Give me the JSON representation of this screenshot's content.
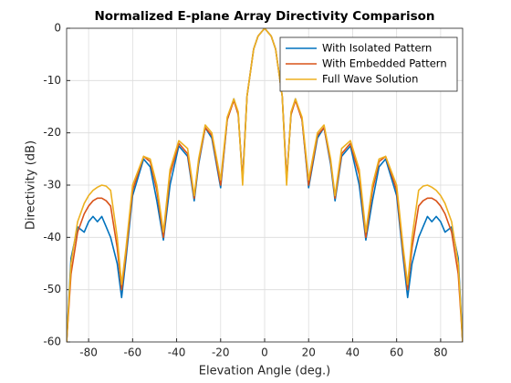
{
  "chart_data": {
    "type": "line",
    "title": "Normalized E-plane Array Directivity Comparison",
    "x_label": "Elevation Angle (deg.)",
    "y_label": "Directivity (dB)",
    "x": [
      -90,
      -88,
      -85,
      -82,
      -80,
      -78,
      -76,
      -74,
      -72,
      -70,
      -67,
      -65,
      -63,
      -60,
      -55,
      -52,
      -49,
      -46,
      -43,
      -39,
      -35,
      -32,
      -30,
      -27,
      -24,
      -20,
      -17,
      -14,
      -12,
      -10,
      -8,
      -5,
      -3,
      0,
      3,
      5,
      8,
      10,
      12,
      14,
      17,
      20,
      24,
      27,
      30,
      32,
      35,
      39,
      43,
      46,
      49,
      52,
      55,
      60,
      63,
      65,
      67,
      70,
      72,
      74,
      76,
      78,
      80,
      82,
      85,
      88,
      90
    ],
    "series": [
      {
        "name": "With Isolated Pattern",
        "color": "#0072bd",
        "values": [
          -60,
          -44,
          -38,
          -39,
          -37,
          -36,
          -37,
          -36,
          -38,
          -40,
          -45,
          -51.5,
          -44,
          -32,
          -25,
          -26.5,
          -33,
          -40.5,
          -30,
          -22.5,
          -24.5,
          -33,
          -26,
          -19,
          -21,
          -30.5,
          -17.5,
          -13.5,
          -16.5,
          -29,
          -13,
          -4,
          -1.5,
          0,
          -1.5,
          -4,
          -13,
          -29,
          -16.5,
          -13.5,
          -17.5,
          -30.5,
          -21,
          -19,
          -26,
          -33,
          -24.5,
          -22.5,
          -30,
          -40.5,
          -33,
          -26.5,
          -25,
          -32,
          -44,
          -51.5,
          -45,
          -40,
          -38,
          -36,
          -37,
          -36,
          -37,
          -39,
          -38,
          -44,
          -60
        ]
      },
      {
        "name": "With Embedded Pattern",
        "color": "#d95319",
        "values": [
          -60,
          -47,
          -39,
          -35.5,
          -34,
          -33,
          -32.5,
          -32.5,
          -33,
          -34,
          -42,
          -50,
          -43,
          -31,
          -24.5,
          -25.5,
          -31,
          -40,
          -28,
          -22,
          -24,
          -32.5,
          -25.5,
          -19,
          -20.5,
          -30,
          -17.5,
          -13.8,
          -16.5,
          -29,
          -13,
          -4,
          -1.5,
          0,
          -1.5,
          -4,
          -13,
          -29,
          -16.5,
          -13.8,
          -17.5,
          -30,
          -20.5,
          -19,
          -25.5,
          -32.5,
          -24,
          -22,
          -28,
          -40,
          -31,
          -25.5,
          -24.5,
          -31,
          -43,
          -50,
          -42,
          -34,
          -33,
          -32.5,
          -32.5,
          -33,
          -34,
          -35.5,
          -39,
          -47,
          -60
        ]
      },
      {
        "name": "Full Wave Solution",
        "color": "#edb120",
        "values": [
          -60,
          -45,
          -37,
          -33.5,
          -32,
          -31,
          -30.4,
          -30,
          -30.2,
          -31,
          -40,
          -49,
          -42,
          -30,
          -24.5,
          -25,
          -30,
          -39,
          -27,
          -21.5,
          -23,
          -32,
          -25,
          -18.5,
          -20,
          -29,
          -17,
          -13.5,
          -16,
          -30,
          -13,
          -4,
          -1.5,
          0,
          -1.5,
          -4,
          -13,
          -30,
          -16,
          -13.5,
          -17,
          -29,
          -20,
          -18.5,
          -25,
          -32,
          -23,
          -21.5,
          -27,
          -39,
          -30,
          -25,
          -24.5,
          -30,
          -42,
          -49,
          -40,
          -31,
          -30.2,
          -30,
          -30.4,
          -31,
          -32,
          -33.5,
          -37,
          -45,
          -60
        ]
      }
    ],
    "xlim": [
      -90,
      90
    ],
    "xticks": [
      -80,
      -60,
      -40,
      -20,
      0,
      20,
      40,
      60,
      80
    ],
    "ylim": [
      -60,
      0
    ],
    "yticks": [
      -60,
      -50,
      -40,
      -30,
      -20,
      -10,
      0
    ],
    "grid": true,
    "legend": "northeast"
  }
}
